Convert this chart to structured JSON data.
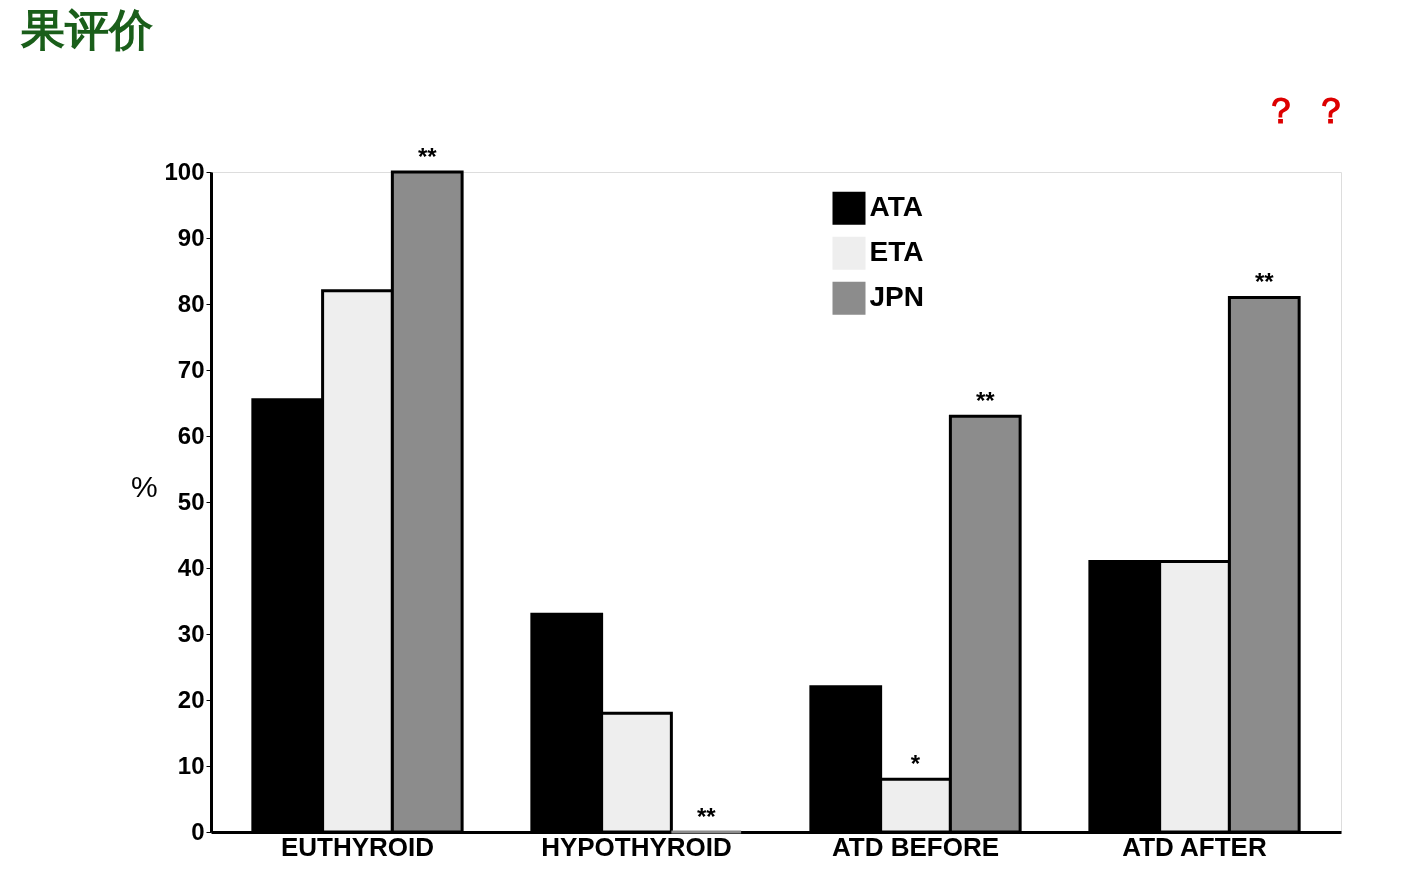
{
  "chart_data": {
    "type": "bar",
    "title": "果评价",
    "ylabel": "%",
    "categories": [
      "EUTHYROID",
      "HYPOTHYROID",
      "ATD  BEFORE",
      "ATD  AFTER"
    ],
    "series": [
      {
        "name": "ATA",
        "color": "#000000",
        "values": [
          65.5,
          33,
          22,
          41
        ]
      },
      {
        "name": "ETA",
        "color": "#eeeeee",
        "values": [
          82,
          18,
          8,
          41
        ],
        "value_labels": [
          null,
          null,
          "*",
          null
        ]
      },
      {
        "name": "JPN",
        "color": "#8c8c8c",
        "values": [
          100,
          0,
          63,
          81
        ],
        "value_labels": [
          "**",
          "**",
          "**",
          "**"
        ]
      }
    ],
    "ylim": [
      0,
      100
    ],
    "yticks": [
      0,
      10,
      20,
      30,
      40,
      50,
      60,
      70,
      80,
      90,
      100
    ],
    "grid": false,
    "legend": "top right",
    "annotations": [
      "？",
      "？"
    ]
  }
}
